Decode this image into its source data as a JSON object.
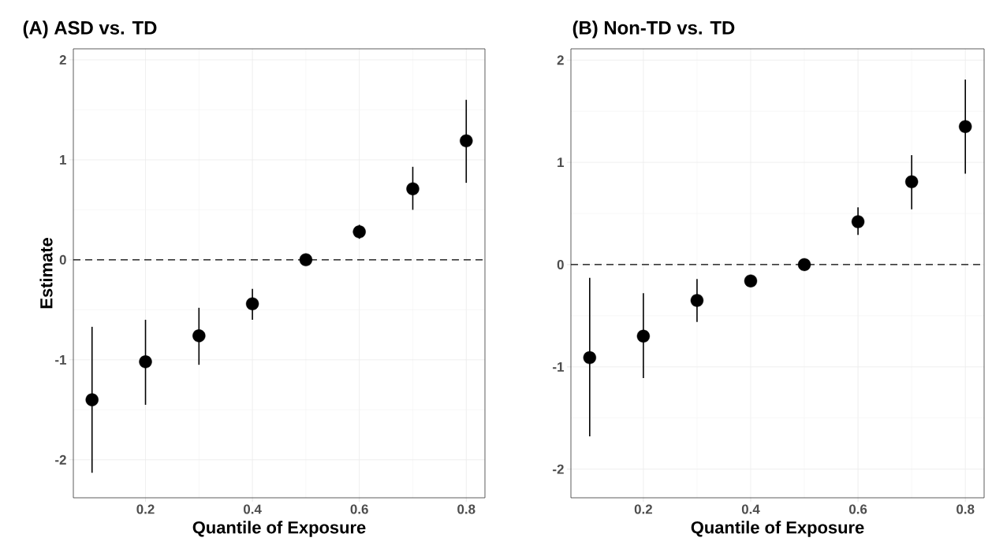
{
  "chart_data": [
    {
      "type": "scatter",
      "title": "(A) ASD vs. TD",
      "xlabel": "Quantile of Exposure",
      "ylabel": "Estimate",
      "marker": "circle",
      "grid": true,
      "color": "#000000",
      "x": [
        0.1,
        0.2,
        0.3,
        0.4,
        0.5,
        0.6,
        0.7,
        0.8
      ],
      "values": [
        -1.4,
        -1.02,
        -0.76,
        -0.44,
        0,
        0.28,
        0.71,
        1.19
      ],
      "errors": [
        [
          -2.13,
          -0.67
        ],
        [
          -1.45,
          -0.6
        ],
        [
          -1.05,
          -0.48
        ],
        [
          -0.6,
          -0.29
        ],
        null,
        [
          0.21,
          0.35
        ],
        [
          0.5,
          0.93
        ],
        [
          0.77,
          1.6
        ]
      ],
      "xlim": [
        0.065,
        0.835
      ],
      "ylim": [
        -2.38,
        2.11
      ],
      "xticks": [
        0.2,
        0.4,
        0.6,
        0.8
      ],
      "yticks": [
        -2,
        -1,
        0,
        1,
        2
      ],
      "ref_lines": [
        {
          "axis": "y",
          "value": 0,
          "color": "#000000",
          "line_style": "dashed"
        }
      ]
    },
    {
      "type": "scatter",
      "title": "(B) Non-TD vs. TD",
      "xlabel": "Quantile of Exposure",
      "marker": "circle",
      "grid": true,
      "color": "#000000",
      "x": [
        0.1,
        0.2,
        0.3,
        0.4,
        0.5,
        0.6,
        0.7,
        0.8
      ],
      "values": [
        -0.91,
        -0.7,
        -0.35,
        -0.16,
        0,
        0.42,
        0.81,
        1.35
      ],
      "errors": [
        [
          -1.68,
          -0.13
        ],
        [
          -1.11,
          -0.28
        ],
        [
          -0.56,
          -0.14
        ],
        null,
        null,
        [
          0.29,
          0.56
        ],
        [
          0.54,
          1.07
        ],
        [
          0.89,
          1.81
        ]
      ],
      "xlim": [
        0.065,
        0.835
      ],
      "ylim": [
        -2.28,
        2.11
      ],
      "xticks": [
        0.2,
        0.4,
        0.6,
        0.8
      ],
      "yticks": [
        -2,
        -1,
        0,
        1,
        2
      ],
      "ref_lines": [
        {
          "axis": "y",
          "value": 0,
          "color": "#000000",
          "line_style": "dashed"
        }
      ]
    }
  ]
}
